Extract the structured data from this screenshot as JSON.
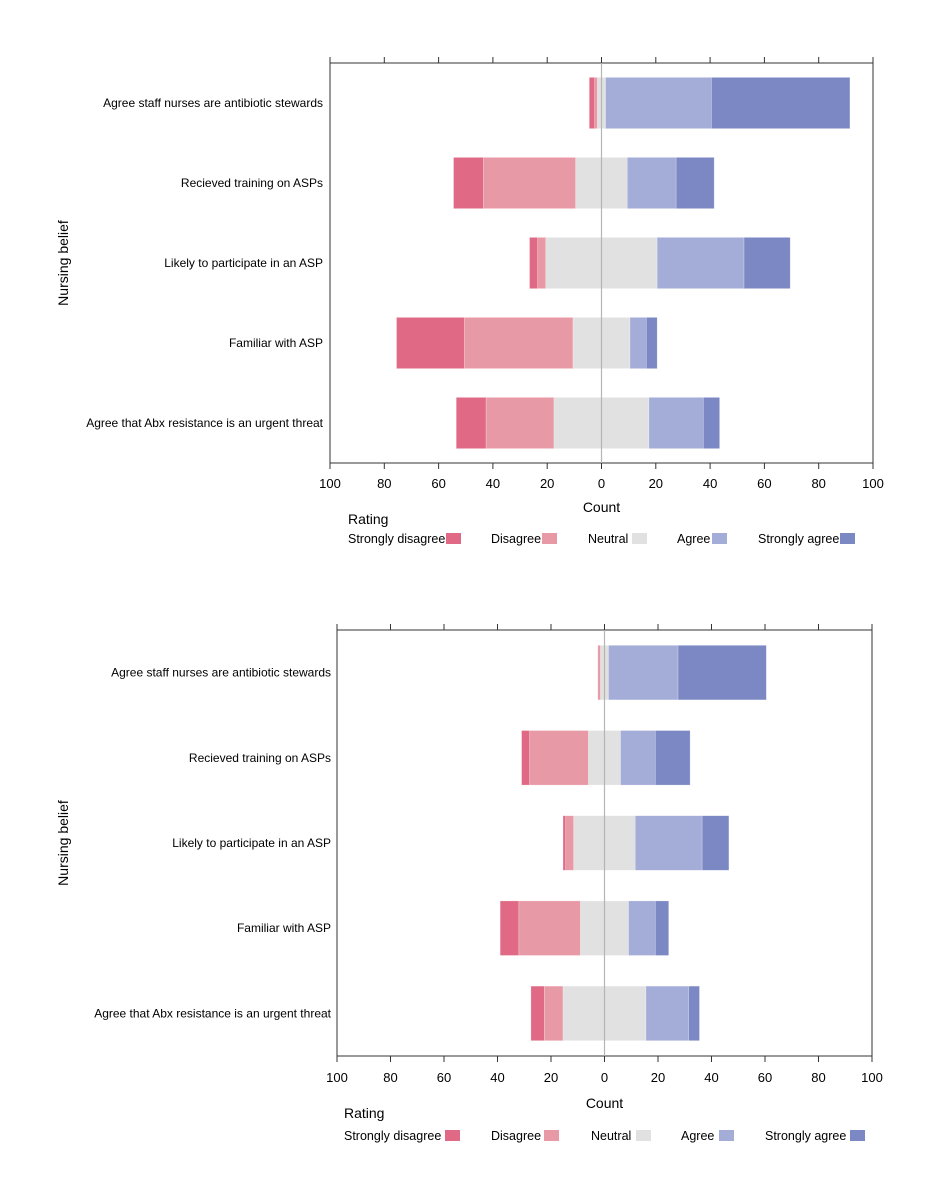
{
  "chart_data": [
    {
      "type": "bar",
      "orientation": "horizontal",
      "stacked": "diverging",
      "title": "",
      "xlabel": "Count",
      "ylabel": "Nursing belief",
      "xlim": [
        -100,
        100
      ],
      "xticks": [
        -100,
        -80,
        -60,
        -40,
        -20,
        0,
        20,
        40,
        60,
        80,
        100
      ],
      "xtick_labels": [
        "100",
        "80",
        "60",
        "40",
        "20",
        "0",
        "20",
        "40",
        "60",
        "80",
        "100"
      ],
      "categories": [
        "Agree staff nurses are antibiotic stewards",
        "Recieved training on ASPs",
        "Likely to participate in an ASP",
        "Familiar with ASP",
        "Agree that Abx resistance is an urgent threat"
      ],
      "series": [
        {
          "name": "Strongly disagree",
          "color": "#e06a85",
          "values": [
            2,
            11,
            3,
            25,
            11
          ]
        },
        {
          "name": "Disagree",
          "color": "#e899a6",
          "values": [
            1,
            34,
            3,
            40,
            25
          ]
        },
        {
          "name": "Neutral",
          "color": "#e1e1e1",
          "values": [
            3,
            19,
            41,
            21,
            35
          ]
        },
        {
          "name": "Agree",
          "color": "#a4acd8",
          "values": [
            39,
            18,
            32,
            6,
            20
          ]
        },
        {
          "name": "Strongly agree",
          "color": "#7b88c3",
          "values": [
            51,
            14,
            17,
            4,
            6
          ]
        }
      ],
      "legend_title": "Rating",
      "legend_position": "bottom",
      "grid": false
    },
    {
      "type": "bar",
      "orientation": "horizontal",
      "stacked": "diverging",
      "title": "",
      "xlabel": "Count",
      "ylabel": "Nursing belief",
      "xlim": [
        -100,
        100
      ],
      "xticks": [
        -100,
        -80,
        -60,
        -40,
        -20,
        0,
        20,
        40,
        60,
        80,
        100
      ],
      "xtick_labels": [
        "100",
        "80",
        "60",
        "40",
        "20",
        "0",
        "20",
        "40",
        "60",
        "80",
        "100"
      ],
      "categories": [
        "Agree staff nurses are antibiotic stewards",
        "Recieved training on ASPs",
        "Likely to participate in an ASP",
        "Familiar with ASP",
        "Agree that Abx resistance is an urgent threat"
      ],
      "series": [
        {
          "name": "Strongly disagree",
          "color": "#e06a85",
          "values": [
            0,
            3,
            1,
            7,
            5
          ]
        },
        {
          "name": "Disagree",
          "color": "#e899a6",
          "values": [
            1,
            22,
            3,
            23,
            7
          ]
        },
        {
          "name": "Neutral",
          "color": "#e1e1e1",
          "values": [
            3,
            12,
            23,
            18,
            31
          ]
        },
        {
          "name": "Agree",
          "color": "#a4acd8",
          "values": [
            26,
            13,
            25,
            10,
            16
          ]
        },
        {
          "name": "Strongly agree",
          "color": "#7b88c3",
          "values": [
            33,
            13,
            10,
            5,
            4
          ]
        }
      ],
      "legend_title": "Rating",
      "legend_position": "bottom",
      "grid": false
    }
  ]
}
